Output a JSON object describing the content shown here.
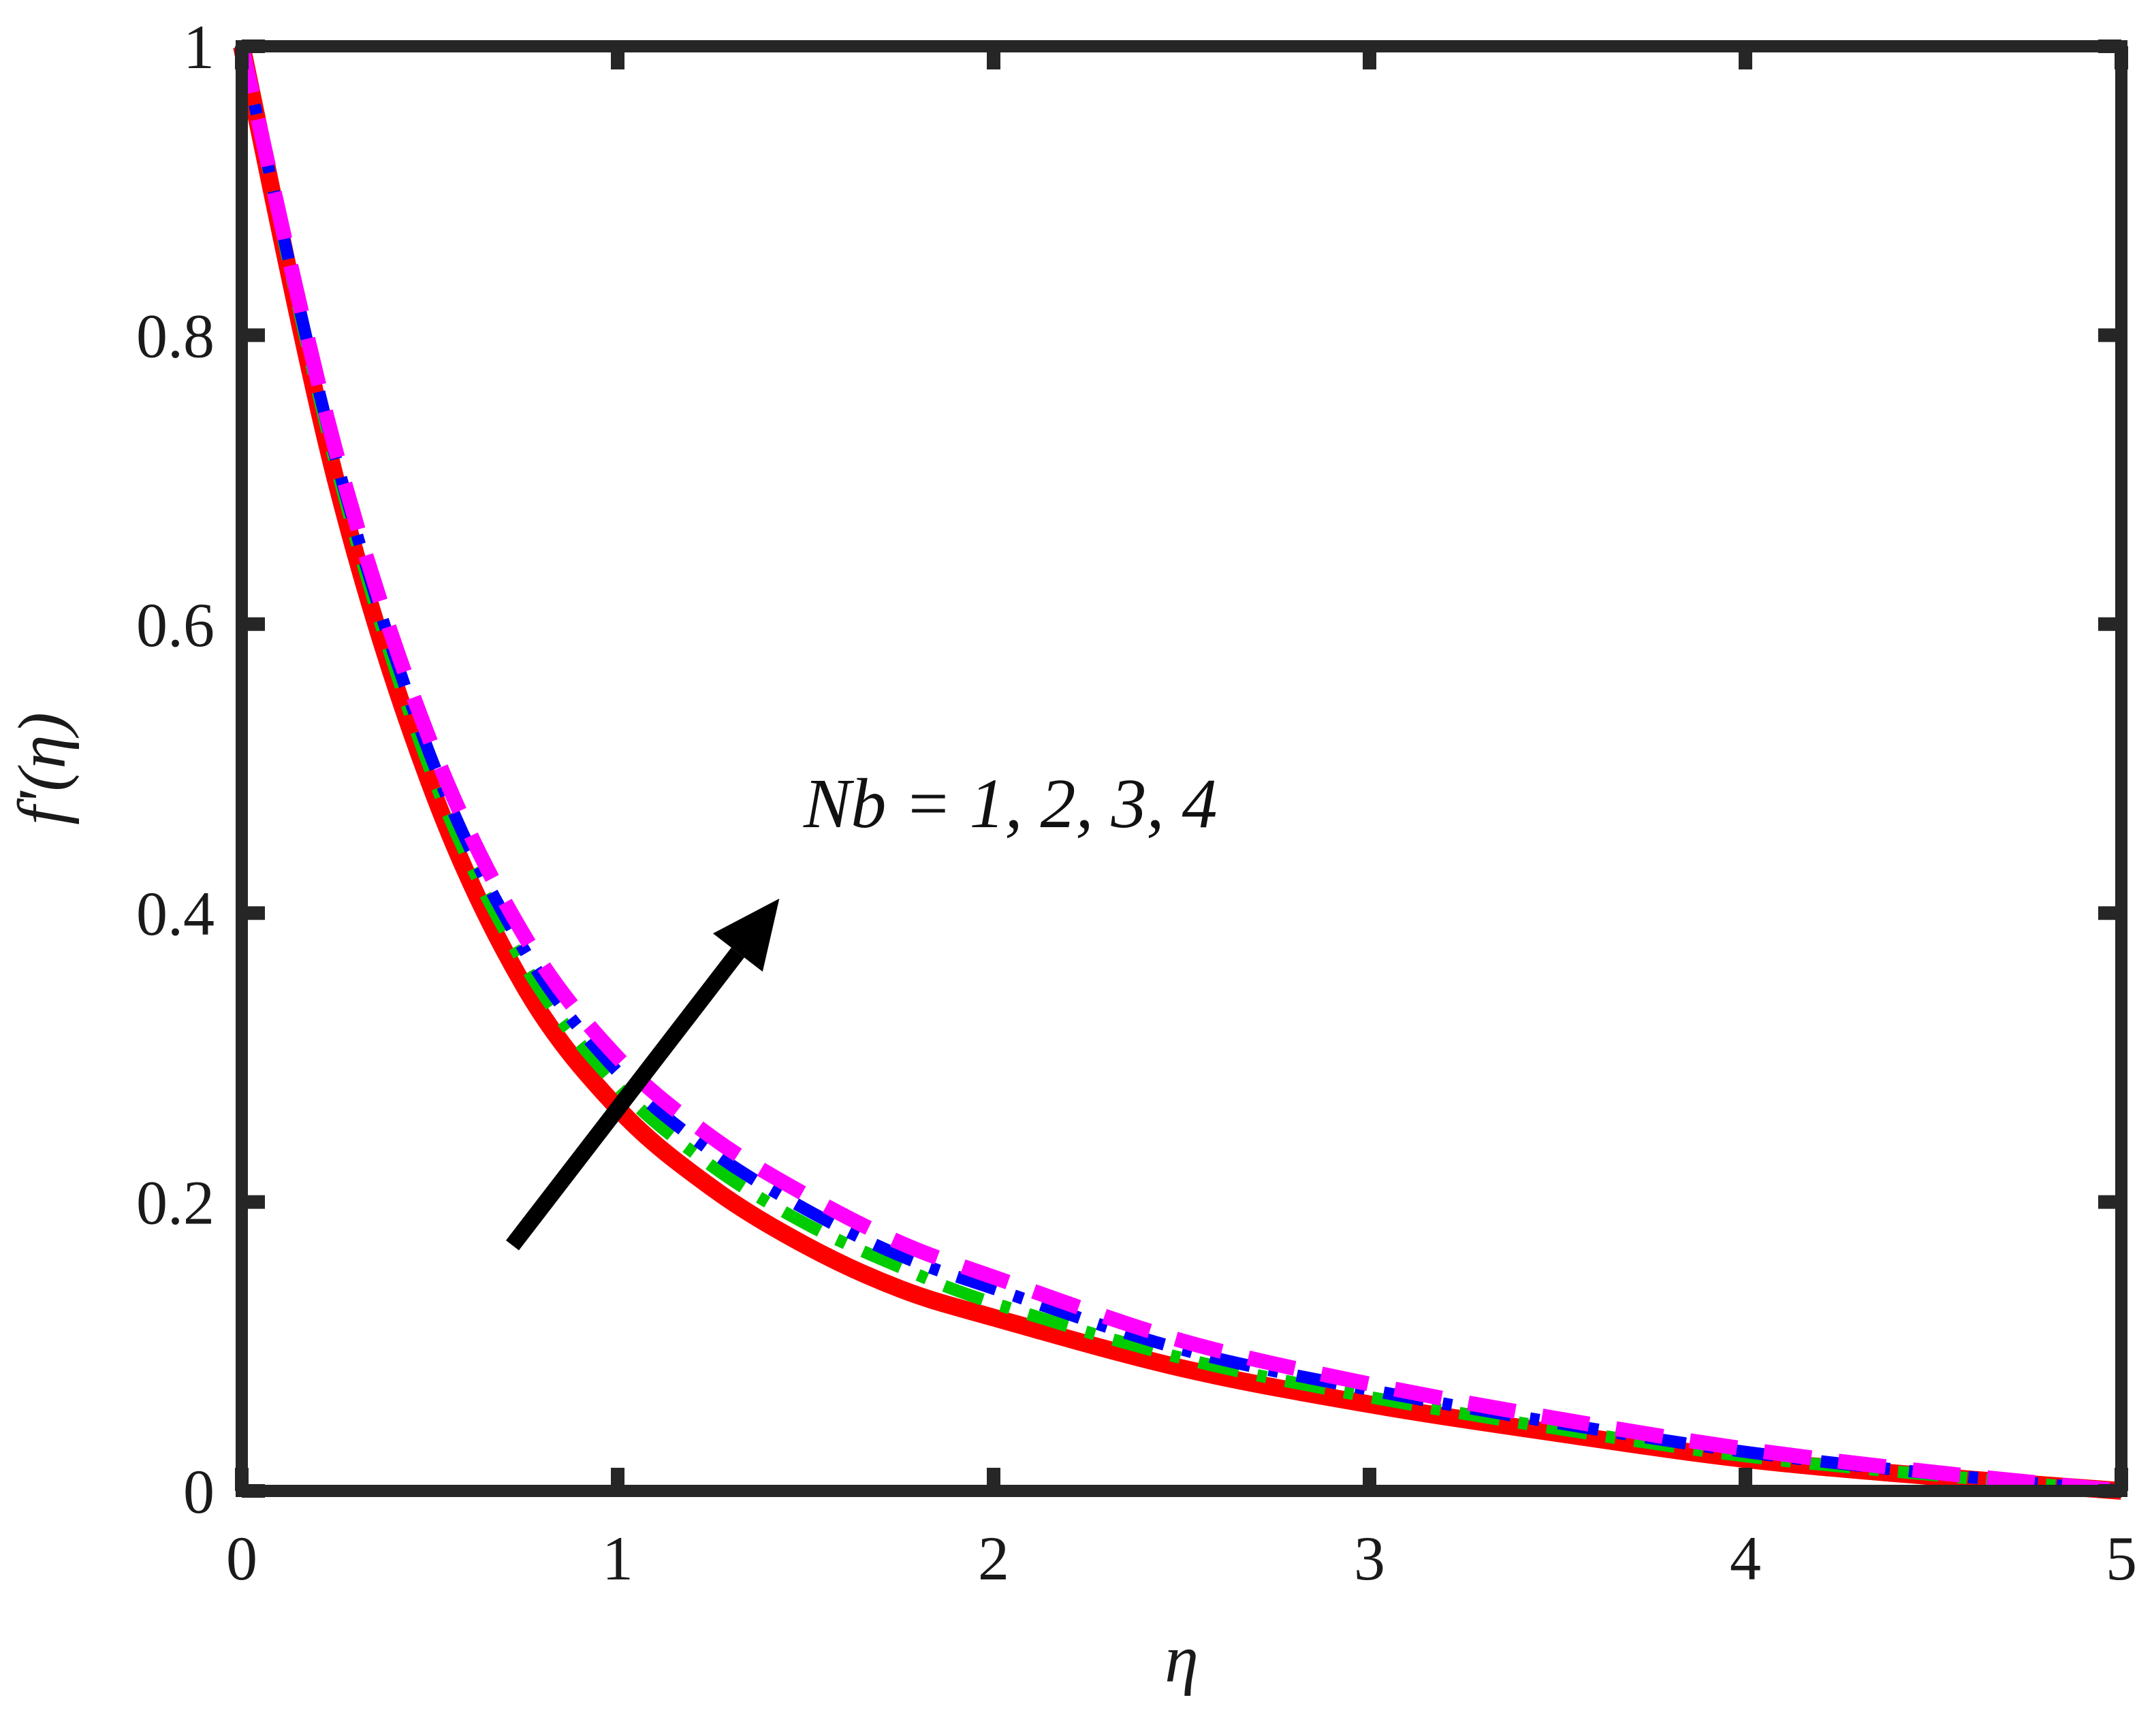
{
  "chart_data": {
    "type": "line",
    "xlabel": "η",
    "ylabel": "f'(η)",
    "xlim": [
      0,
      5
    ],
    "ylim": [
      0,
      1
    ],
    "xticks": [
      "0",
      "1",
      "2",
      "3",
      "4",
      "5"
    ],
    "yticks": [
      "0",
      "0.2",
      "0.4",
      "0.6",
      "0.8",
      "1"
    ],
    "grid": false,
    "legend": "none",
    "annotation": {
      "text": "Nb = 1, 2, 3, 4",
      "arrow_from": [
        0.72,
        0.17
      ],
      "arrow_to": [
        1.43,
        0.41
      ]
    },
    "series": [
      {
        "color": "#ff0000",
        "style": "solid",
        "x": [
          0,
          0.25,
          0.5,
          0.75,
          1,
          1.25,
          1.5,
          1.75,
          2,
          2.5,
          3,
          3.5,
          4,
          4.5,
          5
        ],
        "values": [
          1,
          0.7,
          0.49,
          0.35,
          0.265,
          0.21,
          0.17,
          0.14,
          0.12,
          0.085,
          0.06,
          0.04,
          0.022,
          0.01,
          0
        ]
      },
      {
        "color": "#00cc00",
        "style": "dashdot",
        "x": [
          0,
          0.25,
          0.5,
          0.75,
          1,
          1.25,
          1.5,
          1.75,
          2,
          2.5,
          3,
          3.5,
          4,
          4.5,
          5
        ],
        "values": [
          1,
          0.71,
          0.5,
          0.365,
          0.28,
          0.225,
          0.185,
          0.155,
          0.13,
          0.092,
          0.065,
          0.043,
          0.024,
          0.011,
          0
        ]
      },
      {
        "color": "#0000ff",
        "style": "dashdot",
        "x": [
          0,
          0.25,
          0.5,
          0.75,
          1,
          1.25,
          1.5,
          1.75,
          2,
          2.5,
          3,
          3.5,
          4,
          4.5,
          5
        ],
        "values": [
          1,
          0.715,
          0.51,
          0.375,
          0.29,
          0.235,
          0.195,
          0.163,
          0.14,
          0.098,
          0.07,
          0.047,
          0.027,
          0.012,
          0
        ]
      },
      {
        "color": "#ff00ff",
        "style": "dashed",
        "x": [
          0,
          0.25,
          0.5,
          0.75,
          1,
          1.25,
          1.5,
          1.75,
          2,
          2.5,
          3,
          3.5,
          4,
          4.5,
          5
        ],
        "values": [
          1,
          0.72,
          0.52,
          0.385,
          0.3,
          0.245,
          0.205,
          0.172,
          0.148,
          0.104,
          0.074,
          0.05,
          0.029,
          0.013,
          0
        ]
      }
    ]
  }
}
